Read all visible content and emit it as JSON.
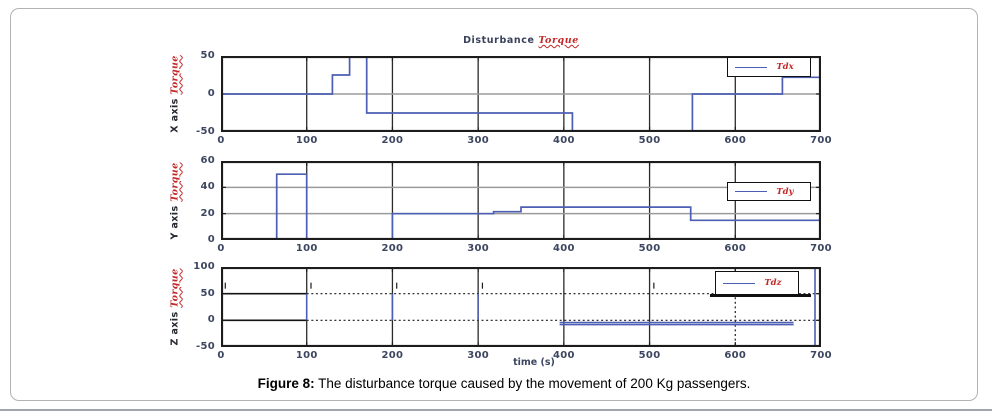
{
  "header": {
    "title_black": "Disturbance",
    "title_red": "Torque"
  },
  "xlabel": "time (s)",
  "caption": {
    "label": "Figure 8:",
    "text": " The disturbance torque caused by the movement of 200 Kg passengers."
  },
  "colors": {
    "line_blue": "#4d5fb3",
    "script_red": "#c32828",
    "grid_gray": "#9b9b9b",
    "axis_black": "#1c1c1c",
    "tick_label": "#3d4660"
  },
  "chart_data": [
    {
      "id": "x",
      "type": "line",
      "ylabel_black": "X axis ",
      "ylabel_red": "Torque",
      "legend": "Tdx",
      "xlim": [
        0,
        700
      ],
      "ylim": [
        -50,
        50
      ],
      "xticks": [
        0,
        100,
        200,
        300,
        400,
        500,
        600,
        700
      ],
      "yticks": [
        -50,
        0,
        50
      ],
      "xgrid": [
        100,
        200,
        300,
        400,
        500,
        600
      ],
      "ygrid": [
        0
      ],
      "steps": [
        [
          0,
          0
        ],
        [
          130,
          0
        ],
        [
          130,
          25
        ],
        [
          150,
          25
        ],
        [
          150,
          50
        ],
        [
          170,
          50
        ],
        [
          170,
          -25
        ],
        [
          410,
          -25
        ],
        [
          410,
          -50
        ],
        [
          550,
          -50
        ],
        [
          550,
          0
        ],
        [
          655,
          0
        ],
        [
          655,
          22
        ],
        [
          700,
          22
        ]
      ]
    },
    {
      "id": "y",
      "type": "line",
      "ylabel_black": "Y axis ",
      "ylabel_red": "Torque",
      "legend": "Tdy",
      "xlim": [
        0,
        700
      ],
      "ylim": [
        0,
        60
      ],
      "xticks": [
        0,
        100,
        200,
        300,
        400,
        500,
        600,
        700
      ],
      "yticks": [
        0,
        20,
        40,
        60
      ],
      "xgrid": [
        100,
        200,
        300,
        400,
        500,
        600
      ],
      "ygrid": [
        20,
        40
      ],
      "steps": [
        [
          0,
          0
        ],
        [
          65,
          0
        ],
        [
          65,
          50
        ],
        [
          100,
          50
        ],
        [
          100,
          0
        ],
        [
          200,
          0
        ],
        [
          200,
          20
        ],
        [
          318,
          20
        ],
        [
          318,
          21.5
        ],
        [
          350,
          21.5
        ],
        [
          350,
          25
        ],
        [
          548,
          25
        ],
        [
          548,
          15
        ],
        [
          700,
          15
        ]
      ]
    },
    {
      "id": "z",
      "type": "line",
      "ylabel_black": "Z axis ",
      "ylabel_red": "Torque",
      "legend": "Tdz",
      "xlim": [
        0,
        700
      ],
      "ylim": [
        -50,
        100
      ],
      "xticks": [
        0,
        100,
        200,
        300,
        400,
        500,
        600,
        700
      ],
      "yticks": [
        -50,
        0,
        50,
        100
      ],
      "xgrid": [
        100,
        200,
        300,
        400,
        500
      ],
      "ygrid": [],
      "blue_segments": [
        [
          [
            100,
            0
          ],
          [
            100,
            50
          ]
        ],
        [
          [
            200,
            0
          ],
          [
            200,
            50
          ]
        ],
        [
          [
            300,
            0
          ],
          [
            300,
            50
          ]
        ],
        [
          [
            395,
            -4
          ],
          [
            668,
            -4
          ]
        ],
        [
          [
            395,
            -8
          ],
          [
            668,
            -8
          ]
        ],
        [
          [
            693,
            -50
          ],
          [
            693,
            100
          ]
        ]
      ],
      "ref_solid": [
        {
          "y": 50,
          "x": [
            0,
            100
          ]
        },
        {
          "y": 0,
          "x": [
            0,
            100
          ]
        }
      ],
      "ref_dotted": [
        {
          "y": 50,
          "x": [
            100,
            700
          ]
        },
        {
          "y": 0,
          "x": [
            100,
            700
          ]
        }
      ],
      "dotted_verticals": [
        {
          "x": 600,
          "y": [
            -50,
            52
          ]
        }
      ],
      "artifact_ticks": [
        {
          "x": 5,
          "y": 65
        },
        {
          "x": 105,
          "y": 65
        },
        {
          "x": 205,
          "y": 65
        },
        {
          "x": 305,
          "y": 65
        },
        {
          "x": 505,
          "y": 65
        },
        {
          "x": 600,
          "y": 97
        }
      ]
    }
  ]
}
